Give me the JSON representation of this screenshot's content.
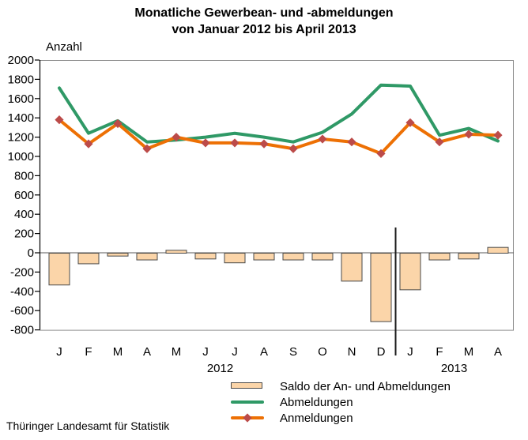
{
  "title": {
    "line1": "Monatliche Gewerbean- und -abmeldungen",
    "line2": "von Januar 2012 bis April 2013"
  },
  "y_axis_unit": "Anzahl",
  "footer": "Thüringer Landesamt für Statistik",
  "chart_data": {
    "type": "bar+line combo",
    "title": "Monatliche Gewerbean- und -abmeldungen von Januar 2012 bis April 2013",
    "ylabel": "Anzahl",
    "ylim": [
      -800,
      2000
    ],
    "ytick_step": 200,
    "grid": false,
    "legend_position": "bottom",
    "categories": [
      "J",
      "F",
      "M",
      "A",
      "M",
      "J",
      "J",
      "A",
      "S",
      "O",
      "N",
      "D",
      "J",
      "F",
      "M",
      "A"
    ],
    "year_groups": [
      {
        "label": "2012",
        "from": 0,
        "to": 11
      },
      {
        "label": "2013",
        "from": 12,
        "to": 15
      }
    ],
    "series": [
      {
        "name": "Saldo der An- und Abmeldungen",
        "type": "bar",
        "fill": "#FBD5A9",
        "stroke": "#4A4A4A",
        "values": [
          -330,
          -110,
          -30,
          -70,
          30,
          -60,
          -100,
          -70,
          -70,
          -70,
          -290,
          -710,
          -380,
          -70,
          -60,
          60
        ]
      },
      {
        "name": "Abmeldungen",
        "type": "line",
        "color": "#2F9966",
        "values": [
          1710,
          1240,
          1370,
          1150,
          1170,
          1200,
          1240,
          1200,
          1150,
          1250,
          1440,
          1740,
          1730,
          1220,
          1290,
          1160
        ]
      },
      {
        "name": "Anmeldungen",
        "type": "line",
        "color": "#ED7004",
        "marker": "diamond",
        "marker_color": "#BC4B49",
        "values": [
          1380,
          1130,
          1340,
          1080,
          1200,
          1140,
          1140,
          1130,
          1080,
          1180,
          1150,
          1030,
          1350,
          1150,
          1230,
          1220
        ]
      }
    ]
  },
  "colors": {
    "frame": "#8C8C8C",
    "axis": "#000000",
    "zero_line": "#595959",
    "year_separator": "#1A1A1A"
  }
}
